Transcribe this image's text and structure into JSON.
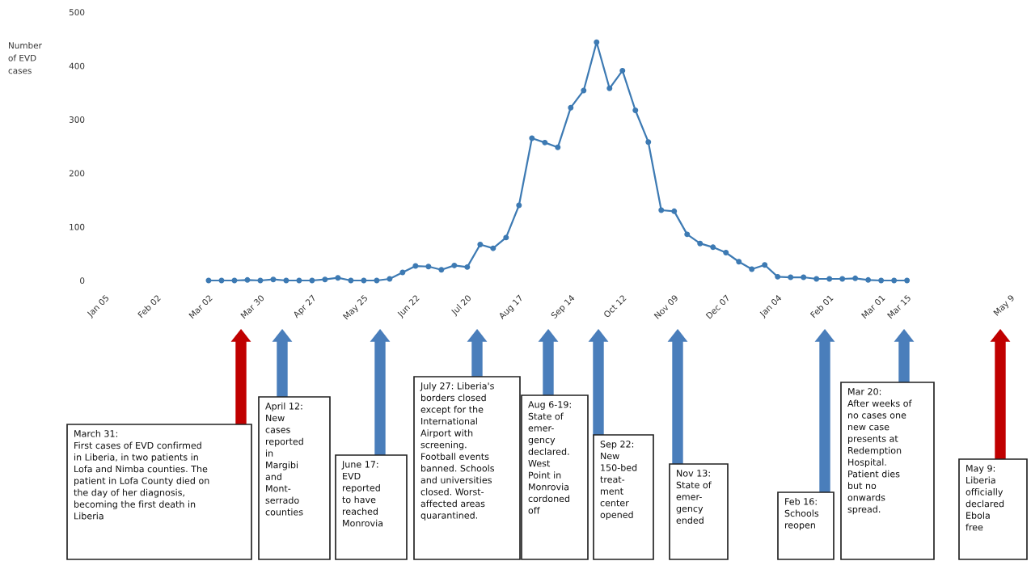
{
  "chart_data": {
    "type": "line",
    "ylabel": "Number\nof EVD\ncases",
    "categories": [
      "Jan 05",
      null,
      null,
      null,
      "Feb 02",
      null,
      null,
      null,
      "Mar 02",
      null,
      null,
      null,
      "Mar 30",
      null,
      null,
      null,
      "Apr 27",
      null,
      null,
      null,
      "May 25",
      null,
      null,
      null,
      "Jun 22",
      null,
      null,
      null,
      "Jul 20",
      null,
      null,
      null,
      "Aug 17",
      null,
      null,
      null,
      "Sep 14",
      null,
      null,
      null,
      "Oct 12",
      null,
      null,
      null,
      "Nov 09",
      null,
      null,
      null,
      "Dec 07",
      null,
      null,
      null,
      "Jan 04",
      null,
      null,
      null,
      "Feb 01",
      null,
      null,
      null,
      "Mar 01",
      null,
      "Mar 15",
      null,
      null,
      null,
      null,
      null,
      null,
      null,
      "May 9"
    ],
    "series": [
      {
        "color": "#3d7ab3",
        "values": [
          null,
          null,
          null,
          null,
          null,
          null,
          null,
          null,
          0,
          0,
          0,
          1,
          0,
          2,
          0,
          0,
          0,
          2,
          5,
          0,
          0,
          0,
          3,
          15,
          27,
          26,
          20,
          28,
          25,
          67,
          60,
          80,
          140,
          265,
          257,
          248,
          322,
          354,
          444,
          358,
          391,
          317,
          258,
          131,
          129,
          86,
          69,
          62,
          52,
          35,
          21,
          29,
          7,
          6,
          6,
          3,
          3,
          3,
          4,
          1,
          0,
          0,
          0,
          null,
          null,
          null,
          null,
          null,
          null,
          null,
          null
        ]
      }
    ],
    "marker": "circle",
    "line_style": "solid",
    "grid": false,
    "ylim": [
      0,
      500
    ],
    "yticks": [
      0,
      100,
      200,
      300,
      400,
      500
    ],
    "annotations": [
      "March 31:\nFirst cases of EVD confirmed\nin Liberia, in two patients in\nLofa and Nimba counties. The\npatient in Lofa County died on\nthe day of her diagnosis,\nbecoming the first death in\nLiberia",
      "April 12:\nNew\ncases\nreported\nin\nMargibi\nand\nMont-\nserrado\ncounties",
      "June 17:\nEVD\nreported\nto have\nreached\nMonrovia",
      "July 27: Liberia's\nborders closed\nexcept for the\nInternational\nAirport with\nscreening.\nFootball events\nbanned. Schools\nand universities\nclosed. Worst-\naffected areas\nquarantined.",
      "Aug 6-19:\nState of\nemer-\ngency\ndeclared.\nWest\nPoint in\nMonrovia\ncordoned\noff",
      "Sep 22:\nNew\n150-bed\ntreat-\nment\ncenter\nopened",
      "Nov 13:\nState of\nemer-\ngency\nended",
      "Feb 16:\nSchools\nreopen",
      "Mar 20:\nAfter weeks of\nno cases one\nnew case\npresents at\nRedemption\nHospital.\nPatient dies\nbut no\nonwards\nspread.",
      "May 9:\nLiberia\nofficially\ndeclared\nEbola\nfree"
    ]
  }
}
